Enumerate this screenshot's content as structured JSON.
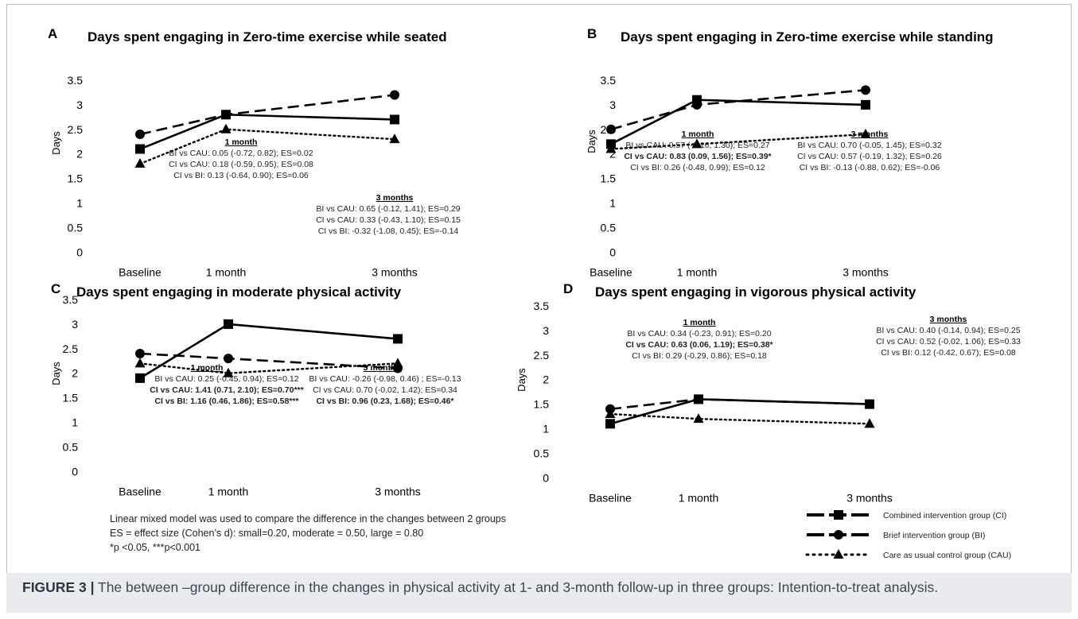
{
  "caption": {
    "label": "FIGURE 3 |",
    "text": " The between –group difference in the changes in physical activity at 1- and 3-month follow-up in three groups: Intention-to-treat analysis."
  },
  "notes": [
    "Linear mixed model was used to compare the difference in the changes between 2 groups",
    "ES = effect size (Cohen’s d): small=0.20, moderate = 0.50, large = 0.80",
    "*p <0.05, ***p<0.001"
  ],
  "legend": [
    {
      "label": "Combined intervention group (CI)",
      "marker": "square",
      "dash": "long"
    },
    {
      "label": "Brief intervention group (BI)",
      "marker": "circle",
      "dash": "long"
    },
    {
      "label": "Care as usual control group (CAU)",
      "marker": "triangle",
      "dash": "dot"
    }
  ],
  "chart_data": [
    {
      "type": "line",
      "panel": "A",
      "title": "Days spent engaging in Zero-time exercise while seated",
      "ylabel": "Days",
      "categories": [
        "Baseline",
        "1 month",
        "3 months"
      ],
      "ylim": [
        0,
        3.5
      ],
      "yticks": [
        "0",
        "0.5",
        "1",
        "1.5",
        "2",
        "2.5",
        "3",
        "3.5"
      ],
      "series": [
        {
          "name": "CI",
          "values": [
            2.1,
            2.8,
            2.7
          ]
        },
        {
          "name": "BI",
          "values": [
            2.4,
            2.8,
            3.2
          ]
        },
        {
          "name": "CAU",
          "values": [
            1.8,
            2.5,
            2.3
          ]
        }
      ],
      "annotations": [
        {
          "heading": "1 month",
          "lines": [
            {
              "text": "BI vs CAU: 0.05 (-0.72, 0.82); ES=0.02",
              "bold": false
            },
            {
              "text": "CI vs CAU: 0.18 (-0.59, 0.95); ES=0.08",
              "bold": false
            },
            {
              "text": "CI vs BI: 0.13 (-0.64, 0.90); ES=0.06",
              "bold": false
            }
          ]
        },
        {
          "heading": "3 months",
          "lines": [
            {
              "text": "BI vs CAU: 0.65 (-0.12, 1.41); ES=0.29",
              "bold": false
            },
            {
              "text": "CI vs CAU: 0.33 (-0.43, 1.10); ES=0.15",
              "bold": false
            },
            {
              "text": "CI vs BI: -0.32 (-1.08, 0.45); ES=-0.14",
              "bold": false
            }
          ]
        }
      ]
    },
    {
      "type": "line",
      "panel": "B",
      "title": "Days spent engaging in Zero-time exercise while standing",
      "ylabel": "Days",
      "categories": [
        "Baseline",
        "1 month",
        "3 months"
      ],
      "ylim": [
        0,
        3.5
      ],
      "yticks": [
        "0",
        "0.5",
        "1",
        "1.5",
        "2",
        "2.5",
        "3",
        "3.5"
      ],
      "series": [
        {
          "name": "CI",
          "values": [
            2.2,
            3.1,
            3.0
          ]
        },
        {
          "name": "BI",
          "values": [
            2.5,
            3.0,
            3.3
          ]
        },
        {
          "name": "CAU",
          "values": [
            2.1,
            2.2,
            2.4
          ]
        }
      ],
      "annotations": [
        {
          "heading": "1 month",
          "lines": [
            {
              "text": "BI vs CAU: 0.57 (-0.16, 1.30); ES=0.27",
              "bold": false
            },
            {
              "text": "CI vs CAU: 0.83 (0.09, 1.56); ES=0.39*",
              "bold": true
            },
            {
              "text": "CI vs BI: 0.26 (-0.48, 0.99); ES=0.12",
              "bold": false
            }
          ]
        },
        {
          "heading": "3 months",
          "lines": [
            {
              "text": "BI vs CAU: 0.70 (-0.05, 1.45); ES=0.32",
              "bold": false
            },
            {
              "text": "CI vs CAU: 0.57 (-0.19, 1.32); ES=0.26",
              "bold": false
            },
            {
              "text": "CI vs BI: -0.13 (-0.88, 0.62); ES=-0.06",
              "bold": false
            }
          ]
        }
      ]
    },
    {
      "type": "line",
      "panel": "C",
      "title": "Days spent engaging in moderate physical activity",
      "ylabel": "Days",
      "categories": [
        "Baseline",
        "1 month",
        "3 months"
      ],
      "ylim": [
        0,
        3.5
      ],
      "yticks": [
        "0",
        "0.5",
        "1",
        "1.5",
        "2",
        "2.5",
        "3",
        "3.5"
      ],
      "series": [
        {
          "name": "CI",
          "values": [
            1.9,
            3.0,
            2.7
          ]
        },
        {
          "name": "BI",
          "values": [
            2.4,
            2.3,
            2.1
          ]
        },
        {
          "name": "CAU",
          "values": [
            2.2,
            2.0,
            2.2
          ]
        }
      ],
      "annotations": [
        {
          "heading": "1 month",
          "lines": [
            {
              "text": "BI vs CAU: 0.25 (-0.45, 0.94); ES=0.12",
              "bold": false
            },
            {
              "text": "CI vs CAU: 1.41 (0.71, 2.10); ES=0.70***",
              "bold": true
            },
            {
              "text": "CI vs BI: 1.16 (0.46, 1.86); ES=0.58***",
              "bold": true
            }
          ]
        },
        {
          "heading": "3 months",
          "lines": [
            {
              "text": "BI vs CAU: -0.26 (-0.98, 0.46) ; ES=-0.13",
              "bold": false
            },
            {
              "text": "CI vs CAU: 0.70 (-0.02, 1.42); ES=0.34",
              "bold": false
            },
            {
              "text": "CI vs BI: 0.96 (0.23, 1.68); ES=0.46*",
              "bold": true
            }
          ]
        }
      ]
    },
    {
      "type": "line",
      "panel": "D",
      "title": "Days spent engaging in vigorous physical activity",
      "ylabel": "Days",
      "categories": [
        "Baseline",
        "1 month",
        "3 months"
      ],
      "ylim": [
        0,
        3.5
      ],
      "yticks": [
        "0",
        "0.5",
        "1",
        "1.5",
        "2",
        "2.5",
        "3",
        "3.5"
      ],
      "series": [
        {
          "name": "CI",
          "values": [
            1.1,
            1.6,
            1.5
          ]
        },
        {
          "name": "BI",
          "values": [
            1.4,
            1.6,
            1.5
          ]
        },
        {
          "name": "CAU",
          "values": [
            1.3,
            1.2,
            1.1
          ]
        }
      ],
      "annotations": [
        {
          "heading": "1 month",
          "lines": [
            {
              "text": "BI vs CAU: 0.34 (-0.23, 0.91); ES=0.20",
              "bold": false
            },
            {
              "text": "CI vs CAU: 0.63 (0.06, 1.19); ES=0.38*",
              "bold": true
            },
            {
              "text": "CI vs BI: 0.29 (-0.29, 0.86); ES=0.18",
              "bold": false
            }
          ]
        },
        {
          "heading": "3 months",
          "lines": [
            {
              "text": "BI vs CAU: 0.40 (-0.14, 0.94); ES=0.25",
              "bold": false
            },
            {
              "text": "CI vs CAU: 0.52 (-0.02, 1.06); ES=0.33",
              "bold": false
            },
            {
              "text": "CI vs BI: 0.12 (-0.42, 0.67); ES=0.08",
              "bold": false
            }
          ]
        }
      ]
    }
  ]
}
